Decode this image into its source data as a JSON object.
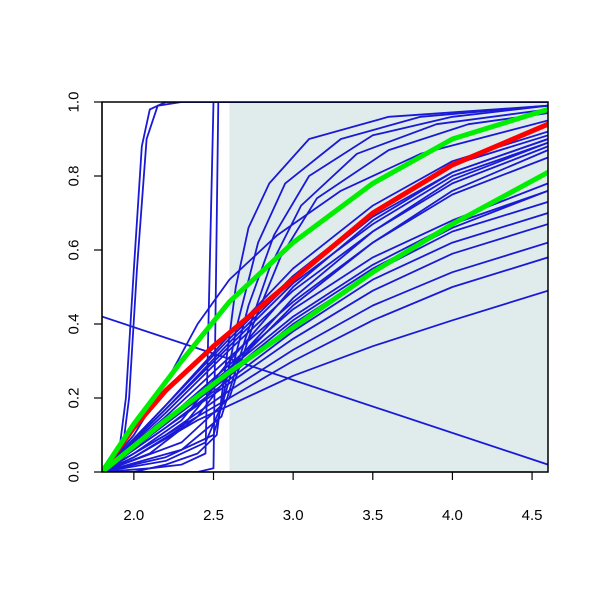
{
  "chart_data": {
    "type": "line",
    "xlim": [
      1.8,
      4.6
    ],
    "ylim": [
      0.0,
      1.0
    ],
    "x_ticks": [
      "2.0",
      "2.5",
      "3.0",
      "3.5",
      "4.0",
      "4.5"
    ],
    "y_ticks": [
      "0.0",
      "0.2",
      "0.4",
      "0.6",
      "0.8",
      "1.0"
    ],
    "x_tick_values": [
      2.0,
      2.5,
      3.0,
      3.5,
      4.0,
      4.5
    ],
    "y_tick_values": [
      0.0,
      0.2,
      0.4,
      0.6,
      0.8,
      1.0
    ],
    "shaded_region": {
      "x": [
        2.6,
        4.6
      ],
      "y": [
        0.0,
        1.0
      ],
      "color": "#e0ecec"
    },
    "colors": {
      "blue": "#1a1ad6",
      "red": "#ff0000",
      "green": "#00ee00"
    },
    "grid": false,
    "series": [
      {
        "color": "#ff0000",
        "weight": "thick",
        "points": [
          [
            1.8,
            0
          ],
          [
            2.0,
            0.12
          ],
          [
            2.2,
            0.22
          ],
          [
            2.5,
            0.34
          ],
          [
            3.0,
            0.52
          ],
          [
            3.5,
            0.7
          ],
          [
            4.0,
            0.83
          ],
          [
            4.6,
            0.94
          ]
        ]
      },
      {
        "color": "#00ee00",
        "weight": "thick",
        "points": [
          [
            1.8,
            0
          ],
          [
            2.0,
            0.13
          ],
          [
            2.3,
            0.3
          ],
          [
            2.6,
            0.46
          ],
          [
            3.0,
            0.62
          ],
          [
            3.5,
            0.78
          ],
          [
            4.0,
            0.9
          ],
          [
            4.6,
            0.98
          ]
        ]
      },
      {
        "color": "#00ee00",
        "weight": "thick",
        "points": [
          [
            1.8,
            0
          ],
          [
            2.2,
            0.14
          ],
          [
            2.6,
            0.27
          ],
          [
            3.0,
            0.39
          ],
          [
            3.5,
            0.54
          ],
          [
            4.0,
            0.67
          ],
          [
            4.6,
            0.81
          ]
        ]
      },
      {
        "color": "#1a1ad6",
        "weight": "thin",
        "points": [
          [
            1.8,
            0
          ],
          [
            1.9,
            0.03
          ],
          [
            1.95,
            0.2
          ],
          [
            2.0,
            0.55
          ],
          [
            2.05,
            0.88
          ],
          [
            2.1,
            0.98
          ],
          [
            2.2,
            1.0
          ],
          [
            4.6,
            1.0
          ]
        ]
      },
      {
        "color": "#1a1ad6",
        "weight": "thin",
        "points": [
          [
            1.8,
            0
          ],
          [
            1.92,
            0.03
          ],
          [
            1.97,
            0.2
          ],
          [
            2.02,
            0.55
          ],
          [
            2.08,
            0.9
          ],
          [
            2.15,
            0.99
          ],
          [
            2.3,
            1.0
          ],
          [
            4.6,
            1.0
          ]
        ]
      },
      {
        "color": "#1a1ad6",
        "weight": "thin",
        "points": [
          [
            1.8,
            0
          ],
          [
            2.1,
            0.01
          ],
          [
            2.3,
            0.02
          ],
          [
            2.45,
            0.05
          ],
          [
            2.5,
            1.0
          ],
          [
            4.6,
            1.0
          ]
        ]
      },
      {
        "color": "#1a1ad6",
        "weight": "thin",
        "points": [
          [
            1.8,
            0
          ],
          [
            2.4,
            0.0
          ],
          [
            2.5,
            0.01
          ],
          [
            2.53,
            1.0
          ],
          [
            4.6,
            1.0
          ]
        ]
      },
      {
        "color": "#1a1ad6",
        "weight": "thin",
        "points": [
          [
            1.8,
            0
          ],
          [
            2.0,
            0.0
          ],
          [
            2.2,
            0.02
          ],
          [
            2.4,
            0.05
          ],
          [
            2.52,
            0.1
          ],
          [
            2.58,
            0.3
          ],
          [
            2.64,
            0.5
          ],
          [
            2.72,
            0.66
          ],
          [
            2.85,
            0.78
          ],
          [
            3.1,
            0.9
          ],
          [
            3.6,
            0.96
          ],
          [
            4.6,
            0.99
          ]
        ]
      },
      {
        "color": "#1a1ad6",
        "weight": "thin",
        "points": [
          [
            1.8,
            0
          ],
          [
            2.2,
            0.03
          ],
          [
            2.45,
            0.08
          ],
          [
            2.55,
            0.18
          ],
          [
            2.65,
            0.4
          ],
          [
            2.78,
            0.62
          ],
          [
            2.95,
            0.78
          ],
          [
            3.3,
            0.9
          ],
          [
            3.8,
            0.96
          ],
          [
            4.6,
            0.99
          ]
        ]
      },
      {
        "color": "#1a1ad6",
        "weight": "thin",
        "points": [
          [
            1.8,
            0
          ],
          [
            2.2,
            0.04
          ],
          [
            2.5,
            0.1
          ],
          [
            2.6,
            0.25
          ],
          [
            2.72,
            0.45
          ],
          [
            2.88,
            0.64
          ],
          [
            3.1,
            0.8
          ],
          [
            3.5,
            0.91
          ],
          [
            4.0,
            0.96
          ],
          [
            4.6,
            0.99
          ]
        ]
      },
      {
        "color": "#1a1ad6",
        "weight": "thin",
        "points": [
          [
            1.8,
            0
          ],
          [
            2.3,
            0.06
          ],
          [
            2.55,
            0.15
          ],
          [
            2.7,
            0.36
          ],
          [
            2.85,
            0.55
          ],
          [
            3.05,
            0.72
          ],
          [
            3.4,
            0.86
          ],
          [
            3.9,
            0.94
          ],
          [
            4.6,
            0.98
          ]
        ]
      },
      {
        "color": "#1a1ad6",
        "weight": "thin",
        "points": [
          [
            1.8,
            0
          ],
          [
            2.3,
            0.08
          ],
          [
            2.6,
            0.2
          ],
          [
            2.75,
            0.4
          ],
          [
            2.92,
            0.58
          ],
          [
            3.15,
            0.74
          ],
          [
            3.6,
            0.87
          ],
          [
            4.1,
            0.94
          ],
          [
            4.6,
            0.97
          ]
        ]
      },
      {
        "color": "#1a1ad6",
        "weight": "thin",
        "points": [
          [
            1.8,
            0
          ],
          [
            2.0,
            0.1
          ],
          [
            2.2,
            0.24
          ],
          [
            2.4,
            0.4
          ],
          [
            2.6,
            0.52
          ],
          [
            2.9,
            0.64
          ],
          [
            3.3,
            0.76
          ],
          [
            3.8,
            0.86
          ],
          [
            4.6,
            0.95
          ]
        ]
      },
      {
        "color": "#1a1ad6",
        "weight": "thin",
        "points": [
          [
            1.8,
            0.42
          ],
          [
            4.6,
            0.02
          ]
        ]
      },
      {
        "color": "#1a1ad6",
        "weight": "thin",
        "points": [
          [
            1.8,
            0
          ],
          [
            2.0,
            0.04
          ],
          [
            2.4,
            0.14
          ],
          [
            3.0,
            0.26
          ],
          [
            3.5,
            0.34
          ],
          [
            4.0,
            0.41
          ],
          [
            4.6,
            0.49
          ]
        ]
      },
      {
        "color": "#1a1ad6",
        "weight": "thin",
        "points": [
          [
            1.8,
            0
          ],
          [
            2.2,
            0.1
          ],
          [
            2.6,
            0.2
          ],
          [
            3.0,
            0.3
          ],
          [
            3.5,
            0.41
          ],
          [
            4.0,
            0.5
          ],
          [
            4.6,
            0.58
          ]
        ]
      },
      {
        "color": "#1a1ad6",
        "weight": "thin",
        "points": [
          [
            1.8,
            0
          ],
          [
            2.2,
            0.1
          ],
          [
            2.6,
            0.22
          ],
          [
            3.0,
            0.33
          ],
          [
            3.5,
            0.45
          ],
          [
            4.0,
            0.54
          ],
          [
            4.6,
            0.62
          ]
        ]
      },
      {
        "color": "#1a1ad6",
        "weight": "thin",
        "points": [
          [
            1.8,
            0
          ],
          [
            2.2,
            0.12
          ],
          [
            2.6,
            0.24
          ],
          [
            3.0,
            0.36
          ],
          [
            3.5,
            0.49
          ],
          [
            4.0,
            0.59
          ],
          [
            4.6,
            0.67
          ]
        ]
      },
      {
        "color": "#1a1ad6",
        "weight": "thin",
        "points": [
          [
            1.8,
            0
          ],
          [
            2.2,
            0.12
          ],
          [
            2.6,
            0.25
          ],
          [
            3.0,
            0.38
          ],
          [
            3.5,
            0.52
          ],
          [
            4.0,
            0.62
          ],
          [
            4.6,
            0.7
          ]
        ]
      },
      {
        "color": "#1a1ad6",
        "weight": "thin",
        "points": [
          [
            1.8,
            0
          ],
          [
            2.2,
            0.13
          ],
          [
            2.6,
            0.26
          ],
          [
            3.0,
            0.4
          ],
          [
            3.5,
            0.54
          ],
          [
            4.0,
            0.65
          ],
          [
            4.6,
            0.73
          ]
        ]
      },
      {
        "color": "#1a1ad6",
        "weight": "thin",
        "points": [
          [
            1.8,
            0
          ],
          [
            2.2,
            0.14
          ],
          [
            2.6,
            0.28
          ],
          [
            3.0,
            0.42
          ],
          [
            3.5,
            0.56
          ],
          [
            4.0,
            0.67
          ],
          [
            4.6,
            0.76
          ]
        ]
      },
      {
        "color": "#1a1ad6",
        "weight": "thin",
        "points": [
          [
            1.8,
            0
          ],
          [
            2.2,
            0.14
          ],
          [
            2.6,
            0.29
          ],
          [
            3.0,
            0.44
          ],
          [
            3.5,
            0.58
          ],
          [
            4.0,
            0.68
          ],
          [
            4.6,
            0.78
          ]
        ]
      },
      {
        "color": "#1a1ad6",
        "weight": "thin",
        "points": [
          [
            1.8,
            0
          ],
          [
            2.2,
            0.13
          ],
          [
            2.6,
            0.27
          ],
          [
            3.0,
            0.41
          ],
          [
            3.5,
            0.55
          ],
          [
            4.0,
            0.66
          ],
          [
            4.6,
            0.76
          ]
        ]
      },
      {
        "color": "#1a1ad6",
        "weight": "thin",
        "points": [
          [
            1.8,
            0
          ],
          [
            2.2,
            0.15
          ],
          [
            2.6,
            0.31
          ],
          [
            3.0,
            0.46
          ],
          [
            3.5,
            0.62
          ],
          [
            4.0,
            0.75
          ],
          [
            4.6,
            0.85
          ]
        ]
      },
      {
        "color": "#1a1ad6",
        "weight": "thin",
        "points": [
          [
            1.8,
            0
          ],
          [
            2.2,
            0.16
          ],
          [
            2.6,
            0.33
          ],
          [
            3.0,
            0.49
          ],
          [
            3.5,
            0.65
          ],
          [
            4.0,
            0.78
          ],
          [
            4.6,
            0.88
          ]
        ]
      },
      {
        "color": "#1a1ad6",
        "weight": "thin",
        "points": [
          [
            1.8,
            0
          ],
          [
            2.2,
            0.17
          ],
          [
            2.6,
            0.34
          ],
          [
            3.0,
            0.51
          ],
          [
            3.5,
            0.67
          ],
          [
            4.0,
            0.8
          ],
          [
            4.6,
            0.89
          ]
        ]
      },
      {
        "color": "#1a1ad6",
        "weight": "thin",
        "points": [
          [
            1.8,
            0
          ],
          [
            2.2,
            0.17
          ],
          [
            2.6,
            0.35
          ],
          [
            3.0,
            0.52
          ],
          [
            3.5,
            0.69
          ],
          [
            4.0,
            0.81
          ],
          [
            4.6,
            0.9
          ]
        ]
      },
      {
        "color": "#1a1ad6",
        "weight": "thin",
        "points": [
          [
            1.8,
            0
          ],
          [
            2.2,
            0.18
          ],
          [
            2.6,
            0.36
          ],
          [
            3.0,
            0.53
          ],
          [
            3.5,
            0.7
          ],
          [
            4.0,
            0.83
          ],
          [
            4.6,
            0.91
          ]
        ]
      },
      {
        "color": "#1a1ad6",
        "weight": "thin",
        "points": [
          [
            1.8,
            0
          ],
          [
            2.2,
            0.18
          ],
          [
            2.6,
            0.37
          ],
          [
            3.0,
            0.55
          ],
          [
            3.5,
            0.72
          ],
          [
            4.0,
            0.84
          ],
          [
            4.6,
            0.92
          ]
        ]
      },
      {
        "color": "#1a1ad6",
        "weight": "thin",
        "points": [
          [
            1.8,
            0
          ],
          [
            2.0,
            0.05
          ],
          [
            2.3,
            0.14
          ],
          [
            2.6,
            0.3
          ],
          [
            3.0,
            0.5
          ],
          [
            3.5,
            0.68
          ],
          [
            4.0,
            0.81
          ],
          [
            4.6,
            0.9
          ]
        ]
      },
      {
        "color": "#1a1ad6",
        "weight": "thin",
        "points": [
          [
            1.8,
            0
          ],
          [
            2.0,
            0.04
          ],
          [
            2.3,
            0.12
          ],
          [
            2.6,
            0.28
          ],
          [
            3.0,
            0.47
          ],
          [
            3.5,
            0.65
          ],
          [
            4.0,
            0.79
          ],
          [
            4.6,
            0.89
          ]
        ]
      },
      {
        "color": "#1a1ad6",
        "weight": "thin",
        "points": [
          [
            1.8,
            0
          ],
          [
            2.1,
            0.05
          ],
          [
            2.4,
            0.15
          ],
          [
            2.7,
            0.32
          ],
          [
            3.0,
            0.45
          ],
          [
            3.5,
            0.62
          ],
          [
            4.0,
            0.76
          ],
          [
            4.6,
            0.87
          ]
        ]
      }
    ]
  }
}
